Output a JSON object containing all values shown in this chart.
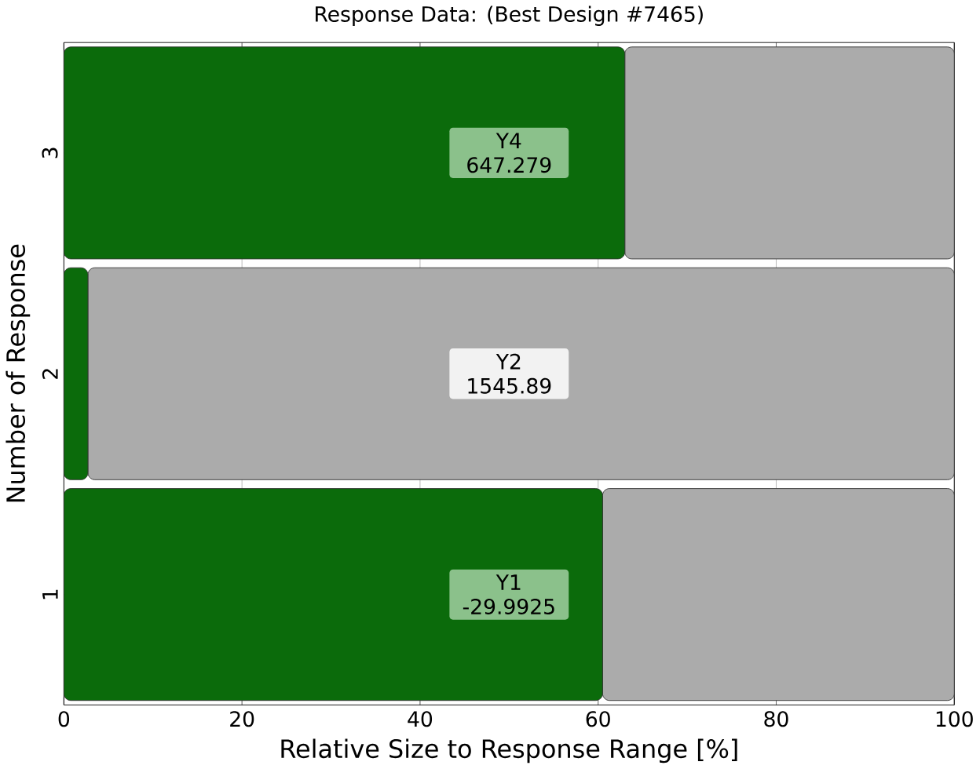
{
  "chart_data": {
    "type": "bar",
    "orientation": "horizontal",
    "stacked": true,
    "title": "Response Data: (Best Design #7465)",
    "xlabel": "Relative Size to Response Range [%]",
    "ylabel": "Number of Response",
    "categories": [
      "3",
      "2",
      "1"
    ],
    "xlim": [
      0,
      100
    ],
    "xticks": [
      0,
      20,
      40,
      60,
      80,
      100
    ],
    "grid": "x",
    "series": [
      {
        "color": "#0b6b0b",
        "values": [
          63,
          2.7,
          60.5
        ]
      },
      {
        "color": "#ababab",
        "values": [
          37,
          97.3,
          39.5
        ]
      }
    ],
    "annotations": [
      "Y4 647.279",
      "Y2 1545.89",
      "Y1 -29.9925"
    ]
  }
}
